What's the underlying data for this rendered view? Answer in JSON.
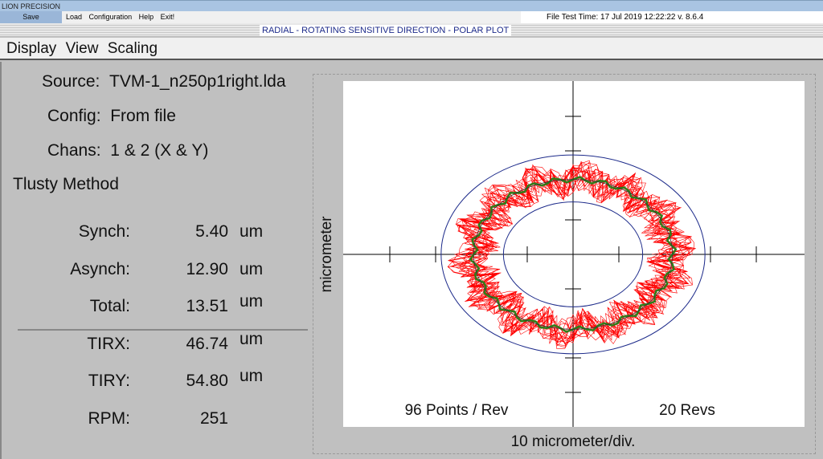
{
  "app_title": "LION PRECISION",
  "menu": {
    "save": "Save",
    "items": [
      "Load",
      "Configuration",
      "Help",
      "Exit!"
    ]
  },
  "file_time": "File Test Time: 17 Jul 2019  12:22:22   v. 8.6.4",
  "banner": "RADIAL - ROTATING SENSITIVE DIRECTION - POLAR PLOT",
  "menu2": [
    "Display",
    "View",
    "Scaling"
  ],
  "info": {
    "source_label": "Source:",
    "source": "TVM-1_n250p1right.lda",
    "config_label": "Config:",
    "config": "From file",
    "chans_label": "Chans:",
    "chans": "1 & 2 (X & Y)",
    "method": "Tlusty Method"
  },
  "stats": [
    {
      "label": "Synch:",
      "value": "5.40",
      "unit": "um"
    },
    {
      "label": "Asynch:",
      "value": "12.90",
      "unit": "um"
    },
    {
      "label": "Total:",
      "value": "13.51",
      "unit": "um"
    },
    {
      "label": "TIRX:",
      "value": "46.74",
      "unit": "um"
    },
    {
      "label": "TIRY:",
      "value": "54.80",
      "unit": "um"
    },
    {
      "label": "RPM:",
      "value": "251",
      "unit": ""
    }
  ],
  "chart_data": {
    "type": "polar-xy",
    "ylabel": "micrometer",
    "xlabel": "10 micrometer/div.",
    "points_label": "96 Points / Rev",
    "revs_label": "20 Revs",
    "points_per_rev": 96,
    "revs": 20,
    "division_um": 10,
    "tick_divisions": [
      -4,
      -3,
      -1,
      1,
      3,
      4
    ],
    "outer_circle_um": 28.8,
    "inner_circle_um": 15.2,
    "synch_mean_radius_um": 21.7,
    "colors": {
      "raw": "#ff0000",
      "synch": "#2e7d1a",
      "circles": "#1c2a8a",
      "axes": "#000000"
    }
  }
}
